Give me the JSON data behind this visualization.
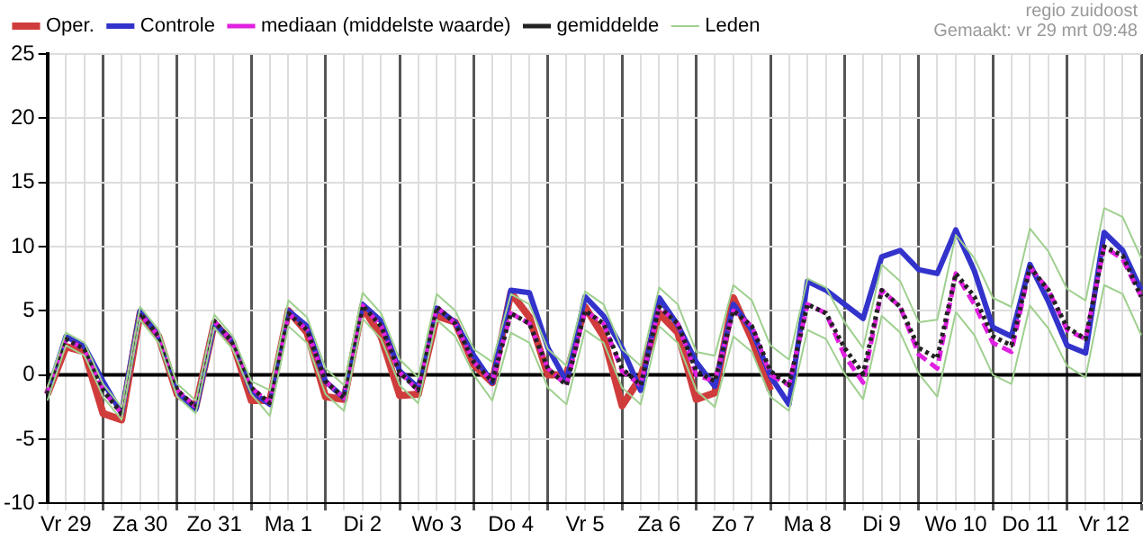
{
  "chart_data": {
    "type": "line",
    "annotations": [
      "regio zuidoost",
      "Gemaakt: vr 29 mrt 09:48"
    ],
    "categories": [
      null,
      "Vr 29",
      null,
      null,
      null,
      "Za 30",
      null,
      null,
      null,
      "Zo 31",
      null,
      null,
      null,
      "Ma 1",
      null,
      null,
      null,
      "Di 2",
      null,
      null,
      null,
      "Wo 3",
      null,
      null,
      null,
      "Do 4",
      null,
      null,
      null,
      "Vr 5",
      null,
      null,
      null,
      "Za 6",
      null,
      null,
      null,
      "Zo 7",
      null,
      null,
      null,
      "Ma 8",
      null,
      null,
      null,
      "Di 9",
      null,
      null,
      null,
      "Wo 10",
      null,
      null,
      null,
      "Do 11",
      null,
      null,
      null,
      "Vr 12",
      null,
      null
    ],
    "series": [
      {
        "name": "Leden",
        "color": "#9fd08f",
        "line_style": "solid",
        "values": [
          -1,
          3.3,
          2.5,
          -0.7,
          -2.5,
          5.3,
          3.5,
          -0.7,
          -2,
          4.7,
          3,
          -0.5,
          -1.2,
          5.8,
          4.5,
          0.5,
          -0.8,
          6.4,
          4.8,
          1.2,
          -0.2,
          6.3,
          5,
          2,
          1,
          6.3,
          5.5,
          2,
          0.7,
          6.5,
          5.5,
          2,
          0.7,
          6.8,
          5.5,
          1.8,
          1.5,
          7,
          5.8,
          2.3,
          1.2,
          7.5,
          6.8,
          4.1,
          2.1,
          8.6,
          7.3,
          4.1,
          4.3,
          10.9,
          9.1,
          6,
          5.3,
          11.4,
          9.6,
          6.7,
          5.8,
          13,
          12.3,
          9.1
        ]
      },
      {
        "color": "#9fd08f",
        "line_style": "solid",
        "values": [
          -2,
          2.3,
          1.5,
          -1.7,
          -3.5,
          4.3,
          2.5,
          -1.7,
          -3,
          3.7,
          2,
          -1.5,
          -3.2,
          3.8,
          2.5,
          -1.5,
          -2.8,
          4.4,
          2.8,
          -0.8,
          -2.2,
          4.3,
          3,
          0,
          -2,
          3.3,
          2.5,
          -1,
          -2.3,
          3.5,
          2.5,
          -1,
          -2.3,
          3.8,
          2.5,
          -1.2,
          -2.5,
          3,
          1.8,
          -1.7,
          -2.8,
          3.5,
          2.8,
          0.1,
          -1.9,
          4.6,
          3.3,
          0.1,
          -1.7,
          4.9,
          3.1,
          0,
          -0.7,
          5.4,
          3.6,
          0.7,
          -0.2,
          7,
          6.3,
          3.1
        ]
      },
      {
        "name": "gemiddelde",
        "color": "#222222",
        "line_style": "dotted",
        "values": [
          -1.5,
          2.8,
          2,
          -1.2,
          -3,
          4.8,
          3,
          -1.2,
          -2.5,
          4.2,
          2.5,
          -1,
          -2.2,
          4.8,
          3.5,
          -0.5,
          -1.8,
          5.4,
          3.8,
          0.2,
          -1.2,
          5.3,
          4,
          1,
          -0.5,
          4.8,
          4,
          0.5,
          -0.8,
          5,
          4,
          0.5,
          -0.8,
          5.3,
          4,
          0.3,
          -0.5,
          5,
          3.8,
          0.3,
          -0.8,
          5.5,
          4.8,
          2.1,
          0.1,
          6.6,
          5.3,
          2.1,
          1.3,
          7.9,
          6.1,
          3,
          2.3,
          8.4,
          6.6,
          3.7,
          2.8,
          10,
          9.3,
          6.1
        ]
      },
      {
        "name": "mediaan (middelste waarde)",
        "color": "#e020e0",
        "line_style": "dashed",
        "values": [
          -1.5,
          2.8,
          2,
          -1.2,
          -3,
          4.8,
          3,
          -1.2,
          -2.5,
          4.2,
          2.5,
          -1,
          -2.2,
          4.8,
          3.5,
          -0.5,
          -1.8,
          5.4,
          3.8,
          0.2,
          -1.2,
          5.3,
          4,
          1,
          -0.5,
          4.8,
          4,
          0.5,
          -0.8,
          5,
          4,
          0.3,
          -0.8,
          5.3,
          4,
          0,
          -0.5,
          5,
          3.8,
          0,
          -0.8,
          5.5,
          4.8,
          1.5,
          -0.6,
          6.6,
          5.3,
          1.6,
          0.5,
          7.9,
          5.5,
          2.5,
          1.8,
          8.4,
          6.6,
          3.5,
          2.8,
          10,
          9,
          6.1
        ]
      },
      {
        "name": "Controle",
        "color": "#3333cc",
        "line_style": "solid",
        "values": [
          -1.5,
          3,
          2.2,
          -0.5,
          -3,
          5,
          3,
          -1.3,
          -2.7,
          4,
          2.6,
          -1.3,
          -2.3,
          5,
          3.8,
          -0.5,
          -1.8,
          5.5,
          4.2,
          0.3,
          -1,
          5.2,
          4.1,
          1.5,
          -0.6,
          6.6,
          6.4,
          2.1,
          -0.5,
          6.1,
          4.6,
          2.1,
          -1.2,
          6,
          3.9,
          1,
          -0.9,
          5.5,
          3.5,
          -0.1,
          -2.3,
          7.3,
          6.6,
          5.5,
          4.4,
          9.2,
          9.7,
          8.2,
          7.9,
          11.3,
          8.1,
          3.7,
          3,
          8.6,
          5.7,
          2.3,
          1.7,
          11.1,
          9.7,
          6.6
        ]
      },
      {
        "name": "Oper.",
        "color": "#d03c3c",
        "line_style": "solid",
        "values": [
          -1.5,
          2.2,
          1.8,
          -3,
          -3.5,
          4.8,
          3,
          -1.5,
          -2.5,
          4,
          2.5,
          -2,
          -2,
          5,
          3.3,
          -1.7,
          -1.9,
          5.3,
          3,
          -1.6,
          -1.5,
          4.6,
          4.1,
          0.8,
          -0.6,
          6.4,
          4.5,
          0,
          0,
          5.3,
          3,
          -2.4,
          -0.2,
          4.8,
          3.3,
          -1.9,
          -1.4,
          6,
          2.8,
          -1.2,
          null,
          null,
          null,
          null,
          null,
          null,
          null,
          null,
          null,
          null,
          null,
          null,
          null,
          null,
          null,
          null,
          null,
          null,
          null,
          null
        ]
      }
    ],
    "ylim": [
      -10,
      25
    ],
    "yticks": [
      -10,
      -5,
      0,
      5,
      10,
      15,
      20,
      25
    ],
    "ref_lines": [
      {
        "axis": "y",
        "value": 0,
        "color": "#000000"
      }
    ],
    "grid": true,
    "legend": "top",
    "marker": "none"
  }
}
